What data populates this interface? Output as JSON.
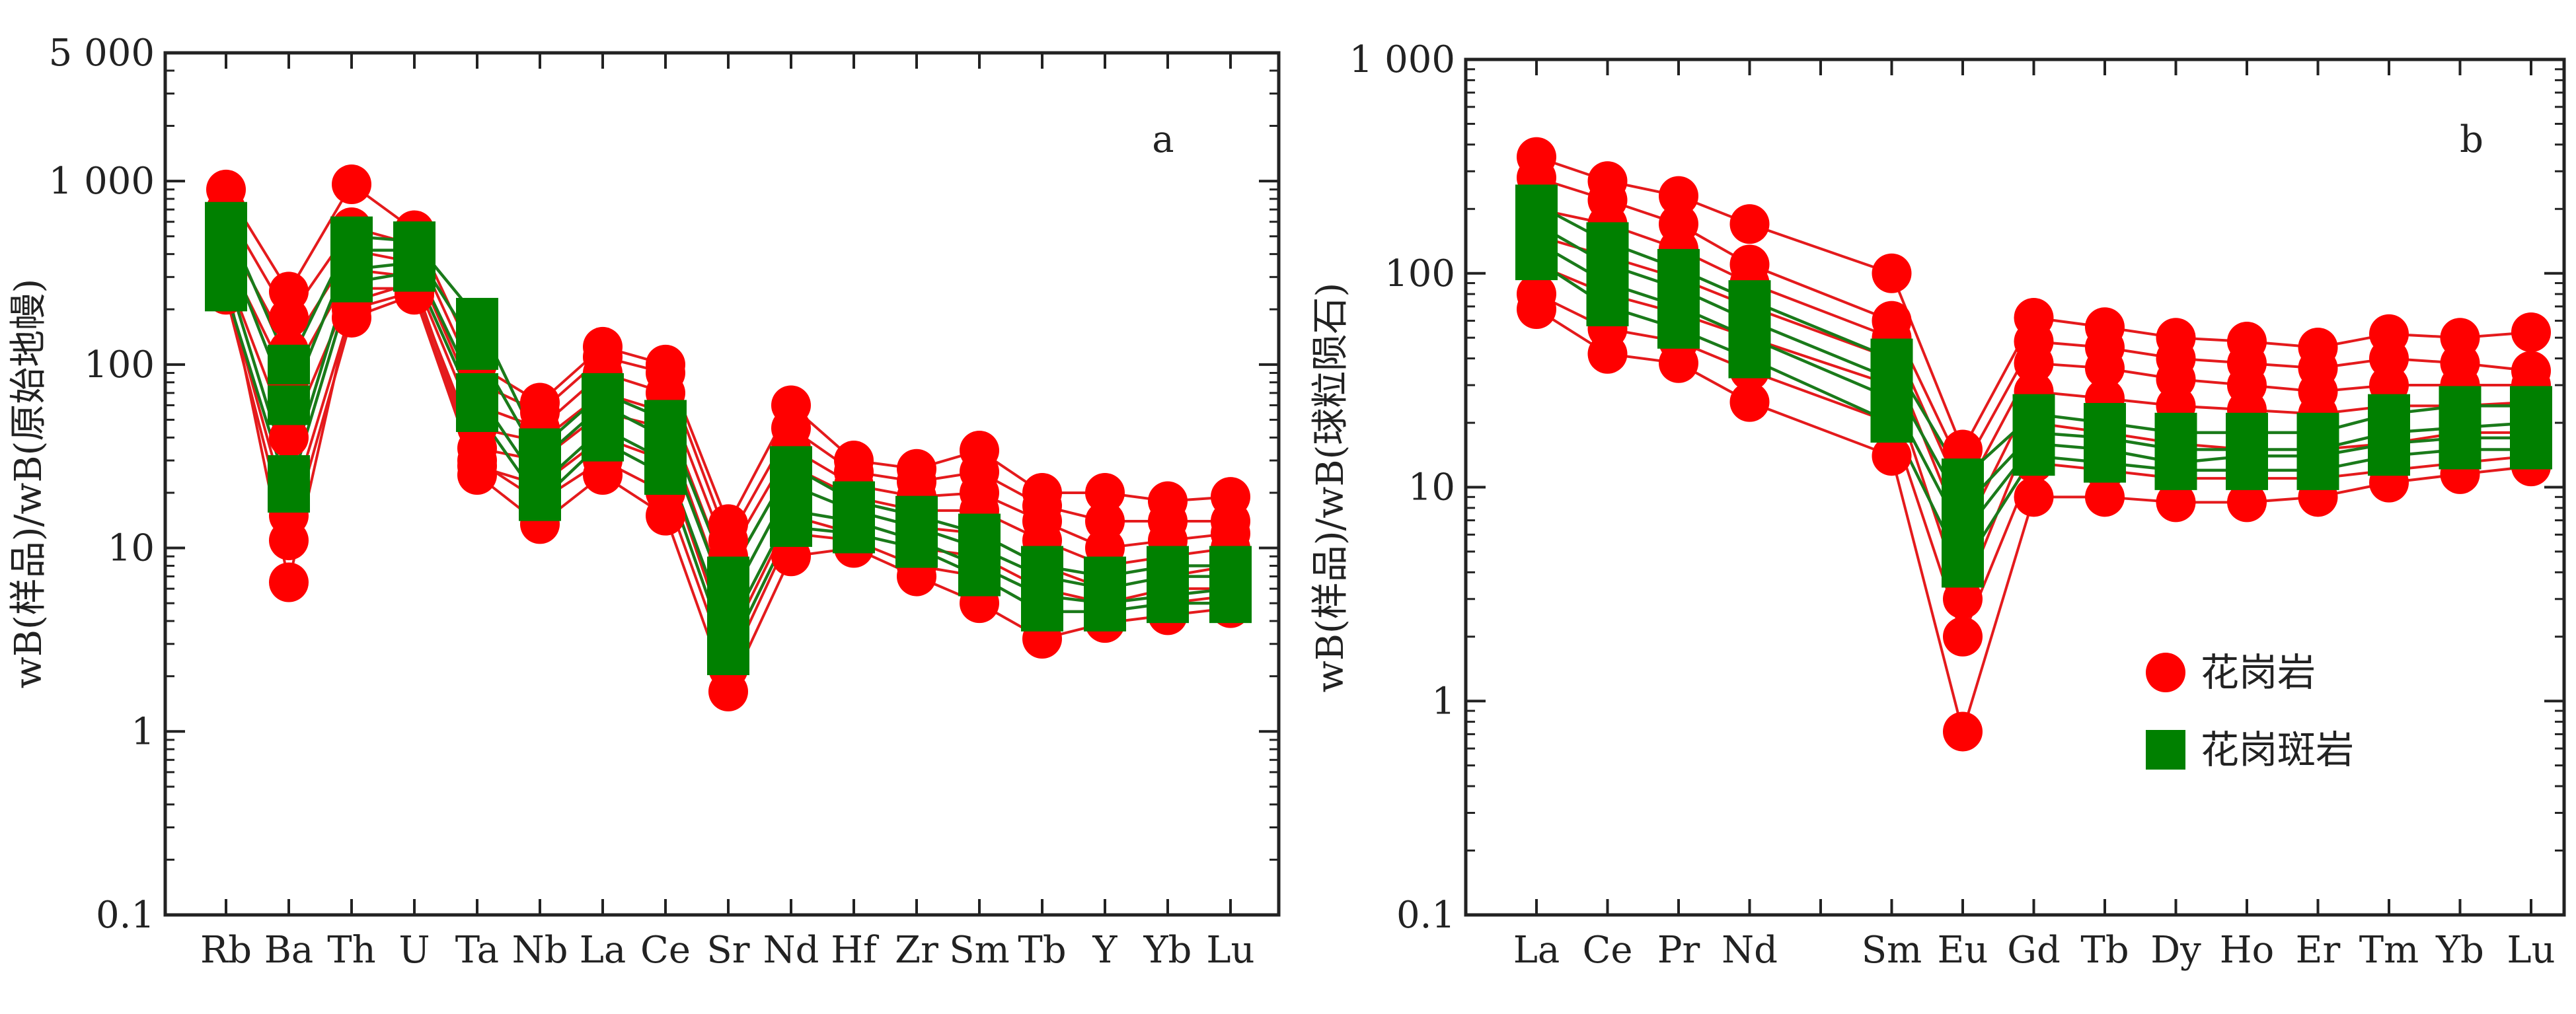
{
  "chart_data": [
    {
      "panel": "a",
      "type": "line",
      "scale": "log",
      "title": "",
      "ylabel": "wB(样品)/wB(原始地幔)",
      "xlabel": "",
      "ylim": [
        0.1,
        5000
      ],
      "yticks": [
        {
          "value": 0.1,
          "label": "0.1"
        },
        {
          "value": 1,
          "label": "1"
        },
        {
          "value": 10,
          "label": "10"
        },
        {
          "value": 100,
          "label": "100"
        },
        {
          "value": 1000,
          "label": "1 000"
        },
        {
          "value": 5000,
          "label": "5 000"
        }
      ],
      "categories": [
        "Rb",
        "Ba",
        "Th",
        "U",
        "Ta",
        "Nb",
        "La",
        "Ce",
        "Sr",
        "Nd",
        "Hf",
        "Zr",
        "Sm",
        "Tb",
        "Y",
        "Yb",
        "Lu"
      ],
      "series": [
        {
          "name": "花岗岩",
          "values": [
            900,
            250,
            960,
            540,
            100,
            62,
            125,
            100,
            13.5,
            60,
            30,
            27,
            34,
            20,
            20,
            18,
            19
          ]
        },
        {
          "name": "花岗岩",
          "values": [
            700,
            180,
            560,
            450,
            80,
            55,
            110,
            90,
            11,
            45,
            26,
            23,
            26,
            17,
            14,
            14,
            14
          ]
        },
        {
          "name": "花岗岩",
          "values": [
            520,
            120,
            420,
            360,
            60,
            45,
            90,
            70,
            9,
            35,
            22,
            19,
            20,
            14,
            10,
            11,
            12
          ]
        },
        {
          "name": "花岗岩",
          "values": [
            400,
            80,
            330,
            300,
            45,
            38,
            70,
            55,
            7,
            28,
            19,
            16,
            16,
            11,
            8,
            9,
            10
          ]
        },
        {
          "name": "花岗岩",
          "values": [
            320,
            40,
            260,
            260,
            35,
            30,
            55,
            45,
            5,
            22,
            16,
            13,
            12,
            8,
            6,
            7,
            8
          ]
        },
        {
          "name": "花岗岩",
          "values": [
            260,
            15,
            200,
            250,
            28,
            22,
            40,
            30,
            3,
            15,
            12,
            10,
            9,
            6,
            5,
            6,
            6
          ]
        },
        {
          "name": "花岗岩",
          "values": [
            240,
            11,
            180,
            240,
            25,
            13.5,
            25,
            15,
            1.65,
            9,
            10,
            7,
            5,
            3.2,
            3.9,
            4.3,
            4.7
          ]
        },
        {
          "name": "花岗岩",
          "values": [
            300,
            6.5,
            220,
            280,
            30,
            18,
            30,
            20,
            2.2,
            12,
            11,
            8,
            7,
            4.5,
            4.5,
            5,
            5.5
          ]
        },
        {
          "name": "花岗斑岩",
          "values": [
            600,
            100,
            500,
            470,
            180,
            35,
            70,
            50,
            7,
            28,
            18,
            15,
            12,
            8,
            7,
            8,
            8
          ]
        },
        {
          "name": "花岗斑岩",
          "values": [
            450,
            60,
            420,
            420,
            120,
            30,
            60,
            40,
            5,
            22,
            16,
            13,
            10,
            7,
            6,
            7,
            7
          ]
        },
        {
          "name": "花岗斑岩",
          "values": [
            320,
            25,
            330,
            360,
            70,
            22,
            45,
            30,
            3.5,
            16,
            14,
            11,
            8,
            5.5,
            5,
            5.5,
            6
          ]
        },
        {
          "name": "花岗斑岩",
          "values": [
            250,
            20,
            280,
            320,
            55,
            18,
            38,
            25,
            2.6,
            13,
            12,
            10,
            7,
            4.5,
            4.5,
            5,
            5
          ]
        }
      ],
      "annotations": [
        "a"
      ]
    },
    {
      "panel": "b",
      "type": "line",
      "scale": "log",
      "title": "",
      "ylabel": "wB(样品)/wB(球粒陨石)",
      "xlabel": "",
      "ylim": [
        0.1,
        1000
      ],
      "yticks": [
        {
          "value": 0.1,
          "label": "0.1"
        },
        {
          "value": 1,
          "label": "1"
        },
        {
          "value": 10,
          "label": "10"
        },
        {
          "value": 100,
          "label": "100"
        },
        {
          "value": 1000,
          "label": "1 000"
        }
      ],
      "categories": [
        "La",
        "Ce",
        "Pr",
        "Nd",
        "",
        "Sm",
        "Eu",
        "Gd",
        "Tb",
        "Dy",
        "Ho",
        "Er",
        "Tm",
        "Yb",
        "Lu"
      ],
      "series": [
        {
          "name": "花岗岩",
          "values": [
            350,
            270,
            230,
            170,
            null,
            100,
            15,
            62,
            56,
            50,
            48,
            45,
            52,
            50,
            53
          ]
        },
        {
          "name": "花岗岩",
          "values": [
            280,
            220,
            170,
            110,
            null,
            60,
            12,
            48,
            45,
            40,
            38,
            36,
            40,
            38,
            35
          ]
        },
        {
          "name": "花岗岩",
          "values": [
            200,
            170,
            130,
            90,
            null,
            50,
            9,
            38,
            36,
            32,
            30,
            28,
            30,
            30,
            30
          ]
        },
        {
          "name": "花岗岩",
          "values": [
            150,
            120,
            95,
            70,
            null,
            40,
            6,
            28,
            26,
            24,
            23,
            22,
            24,
            24,
            25
          ]
        },
        {
          "name": "花岗岩",
          "values": [
            110,
            80,
            65,
            50,
            null,
            30,
            3,
            20,
            18,
            16,
            15,
            15,
            16,
            18,
            18
          ]
        },
        {
          "name": "花岗岩",
          "values": [
            80,
            55,
            48,
            35,
            null,
            20,
            2,
            13,
            12,
            11,
            11,
            11,
            12,
            13,
            14
          ]
        },
        {
          "name": "花岗岩",
          "values": [
            68,
            42,
            38,
            25,
            null,
            14,
            0.72,
            9,
            9,
            8.5,
            8.5,
            9,
            10.5,
            11.5,
            12.5
          ]
        },
        {
          "name": "花岗斑岩",
          "values": [
            210,
            140,
            105,
            75,
            null,
            40,
            11,
            22,
            20,
            18,
            18,
            18,
            22,
            24,
            24
          ]
        },
        {
          "name": "花岗斑岩",
          "values": [
            170,
            110,
            85,
            60,
            null,
            32,
            8,
            18,
            17,
            15,
            15,
            15,
            18,
            19,
            20
          ]
        },
        {
          "name": "花岗斑岩",
          "values": [
            140,
            90,
            70,
            50,
            null,
            26,
            6,
            16,
            15,
            13,
            14,
            14,
            16,
            17,
            17
          ]
        },
        {
          "name": "花岗斑岩",
          "values": [
            115,
            70,
            55,
            40,
            null,
            20,
            4.2,
            14,
            13,
            12,
            12,
            12,
            14,
            15,
            15
          ]
        }
      ],
      "annotations": [
        "b"
      ],
      "legend": {
        "placement": "right-middle",
        "entries": [
          {
            "label": "花岗岩",
            "marker": "circle",
            "color": "#ff0000"
          },
          {
            "label": "花岗斑岩",
            "marker": "square",
            "color": "#008000"
          }
        ]
      }
    }
  ],
  "colors": {
    "granite_marker": "#ff0000",
    "granite_line": "#e41a1c",
    "porphyry_marker": "#008000",
    "porphyry_line": "#1a7a1a",
    "axis": "#222222"
  },
  "labels": {
    "panel_a_letter": "a",
    "panel_b_letter": "b",
    "legend_granite": "花岗岩",
    "legend_porphyry": "花岗斑岩",
    "ylabel_a": "wB(样品)/wB(原始地幔)",
    "ylabel_b": "wB(样品)/wB(球粒陨石)"
  }
}
